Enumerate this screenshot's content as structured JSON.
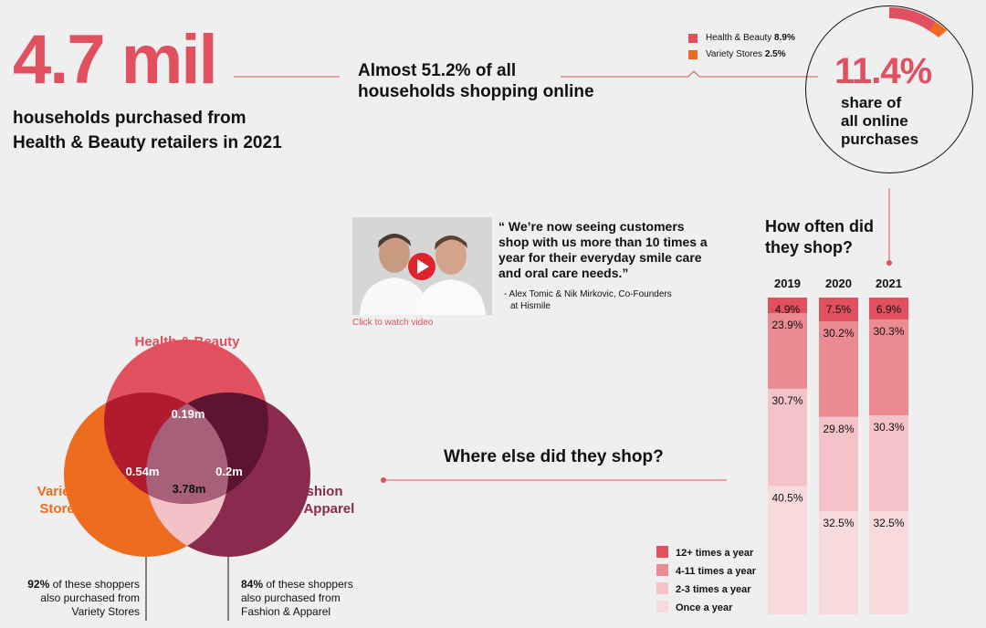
{
  "headline": {
    "number": "4.7 mil",
    "line1": "households purchased from",
    "line2": "Health & Beauty retailers in 2021"
  },
  "online": {
    "line1": "Almost 51.2% of all",
    "line2": "households shopping online"
  },
  "share_legend": [
    {
      "label": "Health & Beauty",
      "value": "8.9%",
      "color": "#e0505f"
    },
    {
      "label": "Variety Stores",
      "value": "2.5%",
      "color": "#ee6c1f"
    }
  ],
  "share": {
    "value": "11.4%",
    "line1": "share of",
    "line2": "all online",
    "line3": "purchases"
  },
  "video": {
    "caption": "Click to watch video",
    "icon": "play-icon"
  },
  "quote": {
    "text": "“ We’re now seeing customers shop with us more than 10 times a year for their everyday smile care and oral care needs.”",
    "credit_line1": "- Alex Tomic & Nik Mirkovic, Co-Founders",
    "credit_line2": "at Hismile"
  },
  "frequency_title": {
    "line1": "How often did",
    "line2": "they shop?"
  },
  "venn": {
    "health_label": "Health & Beauty",
    "variety_label_1": "Variety",
    "variety_label_2": "Stores",
    "fashion_label_1": "Fashion",
    "fashion_label_2": "& Apparel",
    "only_health": "0.19m",
    "health_variety": "0.54m",
    "health_fashion": "0.2m",
    "all_three": "3.78m",
    "colors": {
      "health": "#e0505f",
      "variety": "#ee6c1f",
      "fashion": "#8b2a4f"
    }
  },
  "notes": {
    "variety_pct": "92%",
    "variety_text1": " of these shoppers",
    "variety_text2": "also purchased from",
    "variety_text3": "Variety Stores",
    "fashion_pct": "84%",
    "fashion_text1": " of these shoppers",
    "fashion_text2": "also purchased from",
    "fashion_text3": "Fashion & Apparel"
  },
  "where_title": "Where else did they shop?",
  "chart_data": {
    "type": "bar",
    "stacked": true,
    "normalized": true,
    "categories": [
      "2019",
      "2020",
      "2021"
    ],
    "series": [
      {
        "name": "12+ times a year",
        "values": [
          4.9,
          7.5,
          6.9
        ],
        "labels": [
          "4.9%",
          "7.5%",
          "6.9%"
        ],
        "color": "#e0505f"
      },
      {
        "name": "4-11 times a year",
        "values": [
          23.9,
          30.2,
          30.3
        ],
        "labels": [
          "23.9%",
          "30.2%",
          "30.3%"
        ],
        "color": "#ec8a92"
      },
      {
        "name": "2-3 times a year",
        "values": [
          30.7,
          29.8,
          30.3
        ],
        "labels": [
          "30.7%",
          "29.8%",
          "30.3%"
        ],
        "color": "#f4c3c7"
      },
      {
        "name": "Once a year",
        "values": [
          40.5,
          32.5,
          32.5
        ],
        "labels": [
          "40.5%",
          "32.5%",
          "32.5%"
        ],
        "color": "#f8dadc"
      }
    ],
    "legend": "bottom-left"
  }
}
